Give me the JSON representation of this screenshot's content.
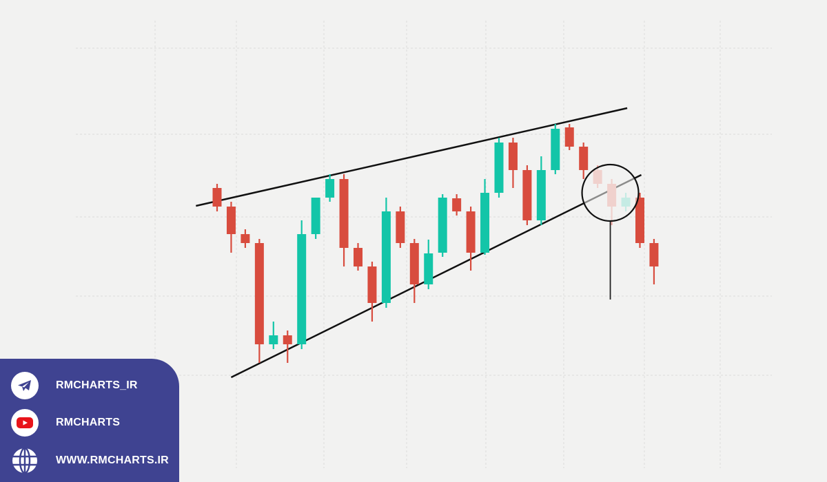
{
  "chart_data": {
    "type": "candlestick",
    "title": "",
    "xlabel": "",
    "ylabel": "",
    "grid": true,
    "colors": {
      "up": "#13c5a8",
      "down": "#d84c3e",
      "up_faded": "#8fe3d6",
      "down_faded": "#eea9a2",
      "line": "#111111"
    },
    "candles": [
      {
        "o": 327,
        "c": 300,
        "h": 333,
        "l": 293
      },
      {
        "o": 300,
        "c": 260,
        "h": 307,
        "l": 233
      },
      {
        "o": 260,
        "c": 247,
        "h": 267,
        "l": 240
      },
      {
        "o": 247,
        "c": 100,
        "h": 253,
        "l": 73
      },
      {
        "o": 100,
        "c": 113,
        "h": 133,
        "l": 93
      },
      {
        "o": 113,
        "c": 100,
        "h": 120,
        "l": 73
      },
      {
        "o": 100,
        "c": 260,
        "h": 280,
        "l": 93
      },
      {
        "o": 260,
        "c": 313,
        "h": 313,
        "l": 253
      },
      {
        "o": 313,
        "c": 340,
        "h": 347,
        "l": 307
      },
      {
        "o": 340,
        "c": 240,
        "h": 347,
        "l": 213
      },
      {
        "o": 240,
        "c": 213,
        "h": 247,
        "l": 207
      },
      {
        "o": 213,
        "c": 160,
        "h": 220,
        "l": 133
      },
      {
        "o": 160,
        "c": 293,
        "h": 313,
        "l": 153
      },
      {
        "o": 293,
        "c": 247,
        "h": 300,
        "l": 240
      },
      {
        "o": 247,
        "c": 187,
        "h": 253,
        "l": 160
      },
      {
        "o": 187,
        "c": 232,
        "h": 252,
        "l": 180
      },
      {
        "o": 233,
        "c": 313,
        "h": 318,
        "l": 227
      },
      {
        "o": 312,
        "c": 293,
        "h": 318,
        "l": 287
      },
      {
        "o": 293,
        "c": 233,
        "h": 300,
        "l": 207
      },
      {
        "o": 233,
        "c": 320,
        "h": 340,
        "l": 230
      },
      {
        "o": 320,
        "c": 393,
        "h": 400,
        "l": 313
      },
      {
        "o": 393,
        "c": 353,
        "h": 400,
        "l": 327
      },
      {
        "o": 353,
        "c": 280,
        "h": 360,
        "l": 273
      },
      {
        "o": 280,
        "c": 353,
        "h": 373,
        "l": 273
      },
      {
        "o": 353,
        "c": 413,
        "h": 420,
        "l": 347
      },
      {
        "o": 415,
        "c": 387,
        "h": 420,
        "l": 382
      },
      {
        "o": 387,
        "c": 353,
        "h": 393,
        "l": 340
      },
      {
        "o": 353,
        "c": 333,
        "h": 360,
        "l": 327,
        "faded": true
      },
      {
        "o": 333,
        "c": 300,
        "h": 340,
        "l": 273,
        "faded": true
      },
      {
        "o": 300,
        "c": 313,
        "h": 320,
        "l": 293,
        "faded": true
      },
      {
        "o": 313,
        "c": 247,
        "h": 320,
        "l": 240
      },
      {
        "o": 247,
        "c": 213,
        "h": 253,
        "l": 187
      }
    ],
    "trendlines": [
      {
        "name": "resistance",
        "from": [
          -1.5,
          301
        ],
        "to": [
          29.1,
          443
        ]
      },
      {
        "name": "support",
        "from": [
          1.0,
          52
        ],
        "to": [
          30.1,
          346
        ]
      }
    ],
    "annotations": [
      {
        "type": "circle",
        "at_index": 27.9,
        "price": 320
      },
      {
        "type": "target-line",
        "at_index": 27.9,
        "from": 278,
        "to": 165
      }
    ]
  },
  "footer": {
    "items": [
      {
        "icon": "telegram-icon",
        "label": "RMCHARTS_IR"
      },
      {
        "icon": "youtube-icon",
        "label": "RMCHARTS"
      },
      {
        "icon": "globe-icon",
        "label": "WWW.RMCHARTS.IR"
      }
    ]
  }
}
